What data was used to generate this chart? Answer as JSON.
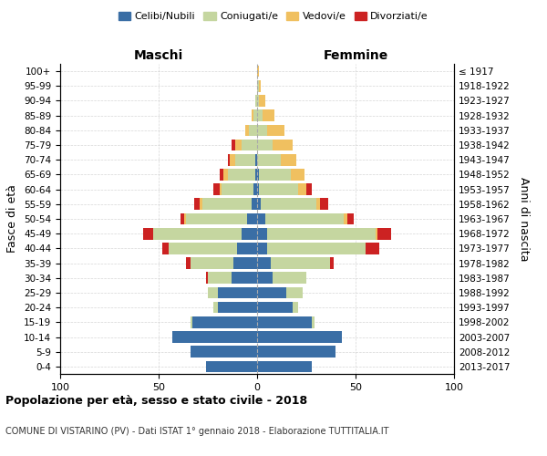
{
  "age_groups": [
    "0-4",
    "5-9",
    "10-14",
    "15-19",
    "20-24",
    "25-29",
    "30-34",
    "35-39",
    "40-44",
    "45-49",
    "50-54",
    "55-59",
    "60-64",
    "65-69",
    "70-74",
    "75-79",
    "80-84",
    "85-89",
    "90-94",
    "95-99",
    "100+"
  ],
  "birth_years": [
    "2013-2017",
    "2008-2012",
    "2003-2007",
    "1998-2002",
    "1993-1997",
    "1988-1992",
    "1983-1987",
    "1978-1982",
    "1973-1977",
    "1968-1972",
    "1963-1967",
    "1958-1962",
    "1953-1957",
    "1948-1952",
    "1943-1947",
    "1938-1942",
    "1933-1937",
    "1928-1932",
    "1923-1927",
    "1918-1922",
    "≤ 1917"
  ],
  "colors": {
    "celibi": "#3a6ea5",
    "coniugati": "#c5d6a0",
    "vedovi": "#f0c060",
    "divorziati": "#cc2222"
  },
  "maschi": {
    "celibi": [
      26,
      34,
      43,
      33,
      20,
      20,
      13,
      12,
      10,
      8,
      5,
      3,
      2,
      1,
      1,
      0,
      0,
      0,
      0,
      0,
      0
    ],
    "coniugati": [
      0,
      0,
      0,
      1,
      2,
      5,
      12,
      22,
      35,
      45,
      31,
      25,
      16,
      14,
      10,
      8,
      4,
      2,
      1,
      0,
      0
    ],
    "vedovi": [
      0,
      0,
      0,
      0,
      0,
      0,
      0,
      0,
      0,
      0,
      1,
      1,
      1,
      2,
      3,
      3,
      2,
      1,
      0,
      0,
      0
    ],
    "divorziati": [
      0,
      0,
      0,
      0,
      0,
      0,
      1,
      2,
      3,
      5,
      2,
      3,
      3,
      2,
      1,
      2,
      0,
      0,
      0,
      0,
      0
    ]
  },
  "femmine": {
    "nubili": [
      28,
      40,
      43,
      28,
      18,
      15,
      8,
      7,
      5,
      5,
      4,
      2,
      1,
      1,
      0,
      0,
      0,
      0,
      0,
      0,
      0
    ],
    "coniugate": [
      0,
      0,
      0,
      1,
      3,
      8,
      17,
      30,
      50,
      55,
      40,
      28,
      20,
      16,
      12,
      8,
      5,
      3,
      1,
      1,
      0
    ],
    "vedove": [
      0,
      0,
      0,
      0,
      0,
      0,
      0,
      0,
      0,
      1,
      2,
      2,
      4,
      7,
      8,
      10,
      9,
      6,
      3,
      1,
      1
    ],
    "divorziate": [
      0,
      0,
      0,
      0,
      0,
      0,
      0,
      2,
      7,
      7,
      3,
      4,
      3,
      0,
      0,
      0,
      0,
      0,
      0,
      0,
      0
    ]
  },
  "title": "Popolazione per età, sesso e stato civile - 2018",
  "subtitle": "COMUNE DI VISTARINO (PV) - Dati ISTAT 1° gennaio 2018 - Elaborazione TUTTITALIA.IT",
  "xlabel_left": "Maschi",
  "xlabel_right": "Femmine",
  "ylabel_left": "Fasce di età",
  "ylabel_right": "Anni di nascita",
  "xlim": 100,
  "legend_labels": [
    "Celibi/Nubili",
    "Coniugati/e",
    "Vedovi/e",
    "Divorziati/e"
  ],
  "bg_color": "#ffffff",
  "grid_color": "#cccccc"
}
